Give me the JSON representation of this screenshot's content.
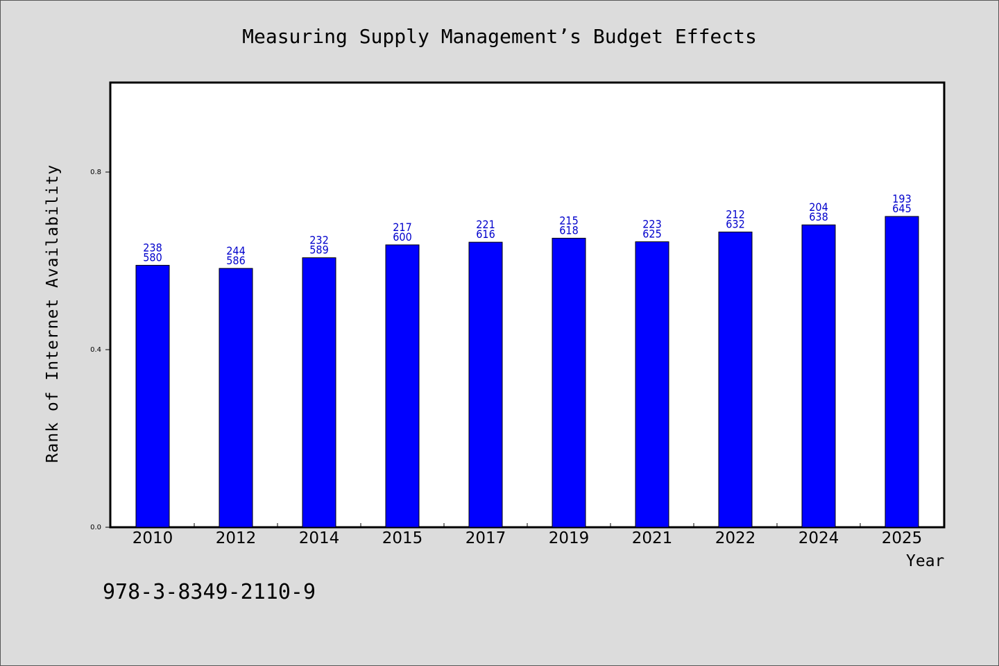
{
  "chart_data": {
    "type": "bar",
    "title": "Measuring Supply Management’s Budget Effects",
    "xlabel": "Year",
    "ylabel": "Rank of Internet Availability",
    "categories": [
      "2010",
      "2012",
      "2014",
      "2015",
      "2017",
      "2019",
      "2021",
      "2022",
      "2024",
      "2025"
    ],
    "values": [
      0.59,
      0.583,
      0.607,
      0.636,
      0.642,
      0.651,
      0.643,
      0.665,
      0.681,
      0.7
    ],
    "labels_top": [
      "238",
      "244",
      "232",
      "217",
      "221",
      "215",
      "223",
      "212",
      "204",
      "193"
    ],
    "labels_bottom": [
      "580",
      "586",
      "589",
      "600",
      "616",
      "618",
      "625",
      "632",
      "638",
      "645"
    ],
    "yticks": [
      "0.0",
      "0.4",
      "0.8"
    ],
    "ytick_values": [
      0.0,
      0.4,
      0.8
    ],
    "ylim": [
      0,
      1.0
    ],
    "grid": false,
    "bar_color": "#0000ff",
    "label_color": "#0000cc"
  },
  "annotation": "978-3-8349-2110-9"
}
